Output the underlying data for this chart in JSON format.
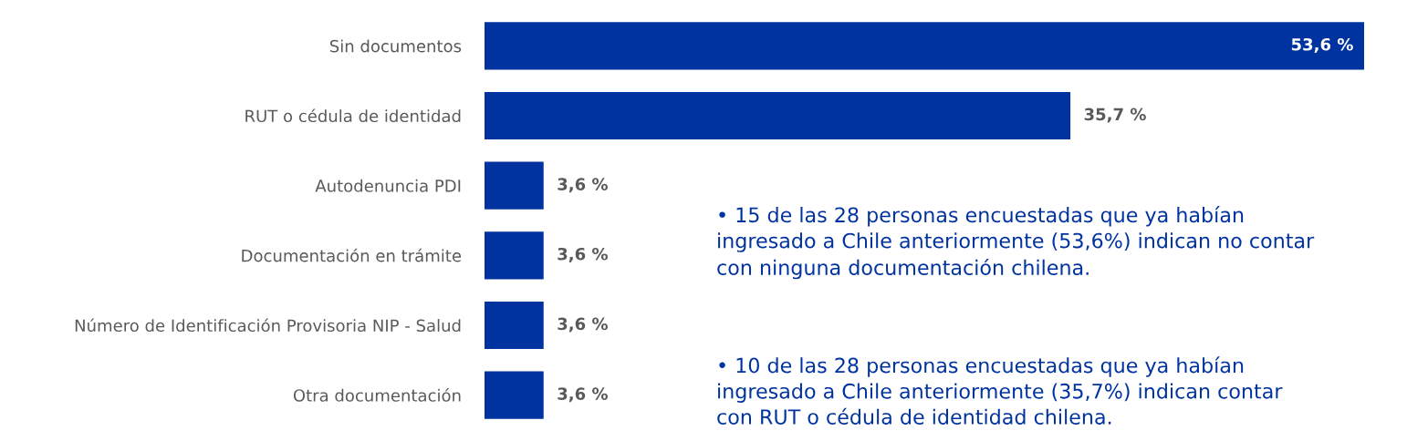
{
  "chart_data": {
    "type": "bar",
    "orientation": "horizontal",
    "categories": [
      "Sin documentos",
      "RUT o cédula de identidad",
      "Autodenuncia PDI",
      "Documentación en trámite",
      "Número de Identificación Provisoria NIP - Salud",
      "Otra documentación"
    ],
    "values": [
      53.6,
      35.7,
      3.6,
      3.6,
      3.6,
      3.6
    ],
    "color": "#0033a0",
    "value_labels": [
      "53,6 %",
      "35,7 %",
      "3,6 %",
      "3,6 %",
      "3,6 %",
      "3,6 %"
    ],
    "grid": false,
    "annotations": [
      "• 15 de las 28 personas encuestadas que ya habían\ningresado a Chile anteriormente (53,6%) indican no contar\ncon ninguna documentación chilena.",
      "• 10 de las 28 personas encuestadas que ya habían\ningresado a Chile anteriormente (35,7%) indican contar\ncon RUT o cédula de identidad chilena."
    ]
  }
}
